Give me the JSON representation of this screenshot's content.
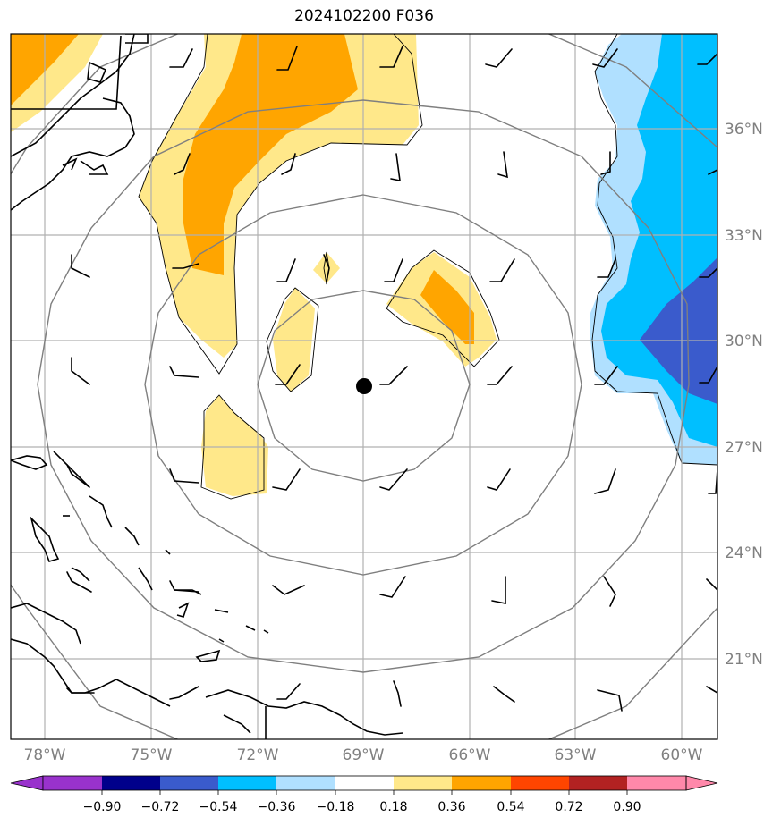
{
  "title": "2024102200 F036",
  "lat_labels": [
    "36°N",
    "33°N",
    "30°N",
    "27°N",
    "24°N",
    "21°N"
  ],
  "lon_labels": [
    "78°W",
    "75°W",
    "72°W",
    "69°W",
    "66°W",
    "63°W",
    "60°W"
  ],
  "colorbar": {
    "colors": [
      "#9932cc",
      "#00008b",
      "#3a5bcc",
      "#00bfff",
      "#b0e0ff",
      "#ffffff",
      "#ffe88a",
      "#ffa500",
      "#ff4500",
      "#b22222",
      "#ff88aa"
    ],
    "ticks": [
      "−0.90",
      "−0.72",
      "−0.54",
      "−0.36",
      "−0.18",
      "0.18",
      "0.36",
      "0.54",
      "0.72",
      "0.90"
    ]
  },
  "storm_center": {
    "lon": -69,
    "lat": 28.7
  },
  "colors": {
    "positive_light": "#ffe88a",
    "positive_mid": "#ffa500",
    "negative_light": "#b0e0ff",
    "negative_mid": "#00bfff",
    "negative_dark": "#3a5bcc"
  }
}
